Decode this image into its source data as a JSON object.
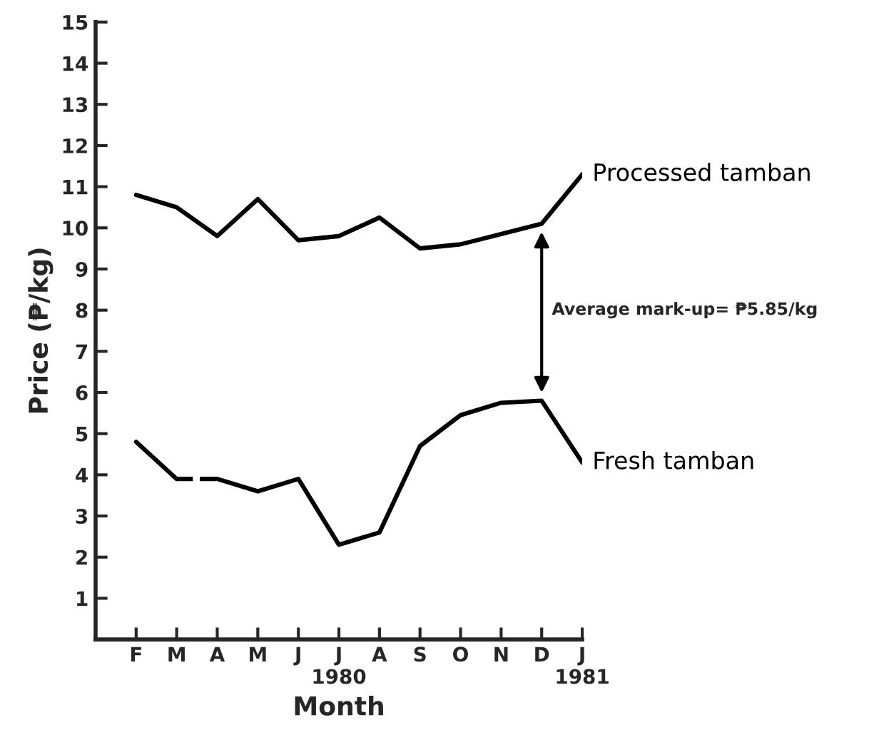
{
  "chart_data": {
    "type": "line",
    "xlabel": "Month",
    "ylabel": "Price (₱/kg)",
    "categories": [
      "F",
      "M",
      "A",
      "M",
      "J",
      "J\n1980",
      "A",
      "S",
      "O",
      "N",
      "D",
      "J\n1981"
    ],
    "series": [
      {
        "name": "Processed tamban",
        "color": "#000000",
        "values": [
          10.8,
          10.5,
          9.8,
          10.7,
          9.7,
          9.8,
          10.25,
          9.5,
          9.6,
          9.85,
          10.1,
          11.3
        ]
      },
      {
        "color": "#000000",
        "values": [
          4.8,
          3.9,
          null,
          null,
          null,
          null,
          null,
          null,
          null,
          null,
          null,
          null
        ]
      },
      {
        "color": "#000000",
        "line_style": "dashed",
        "values": [
          null,
          3.9,
          3.9,
          null,
          null,
          null,
          null,
          null,
          null,
          null,
          null,
          null
        ]
      },
      {
        "name": "Fresh tamban",
        "color": "#000000",
        "values": [
          null,
          null,
          3.9,
          3.6,
          3.9,
          2.3,
          2.6,
          4.7,
          5.45,
          5.75,
          5.8,
          4.3
        ]
      }
    ],
    "ylim": [
      0,
      15
    ],
    "yticks": [
      1,
      2,
      3,
      4,
      5,
      6,
      7,
      8,
      9,
      10,
      11,
      12,
      13,
      14,
      15
    ],
    "grid": false,
    "legend": false,
    "marker": "none",
    "line_style": "solid",
    "annotations": [
      "Average mark-up= ₱5.85/kg"
    ]
  }
}
